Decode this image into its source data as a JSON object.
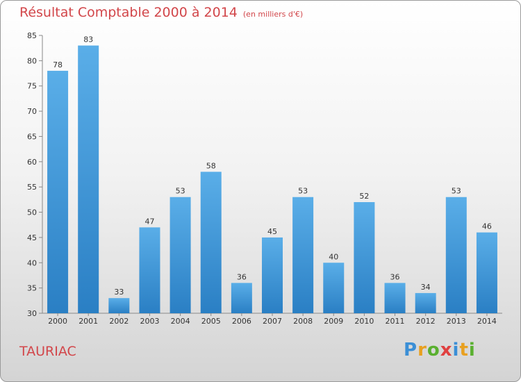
{
  "header": {
    "title": "Résultat Comptable 2000 à 2014",
    "subtitle": "(en milliers d'€)"
  },
  "footer": {
    "town": "TAURIAC",
    "logo": "Proxiti"
  },
  "colors": {
    "title": "#d2464a",
    "bar_top": "#5aaee8",
    "bar_bottom": "#2a7fc4",
    "logo": [
      "#3b8fd6",
      "#e8a020",
      "#5ab030",
      "#e04040",
      "#3b8fd6",
      "#e8a020",
      "#5ab030"
    ]
  },
  "chart_data": {
    "type": "bar",
    "categories": [
      "2000",
      "2001",
      "2002",
      "2003",
      "2004",
      "2005",
      "2006",
      "2007",
      "2008",
      "2009",
      "2010",
      "2011",
      "2012",
      "2013",
      "2014"
    ],
    "values": [
      78,
      83,
      33,
      47,
      53,
      58,
      36,
      45,
      53,
      40,
      52,
      36,
      34,
      53,
      46
    ],
    "title": "Résultat Comptable 2000 à 2014",
    "subtitle": "(en milliers d'€)",
    "ylim": [
      30,
      85
    ],
    "yticks": [
      30,
      35,
      40,
      45,
      50,
      55,
      60,
      65,
      70,
      75,
      80,
      85
    ],
    "grid": false,
    "data_labels": true
  }
}
